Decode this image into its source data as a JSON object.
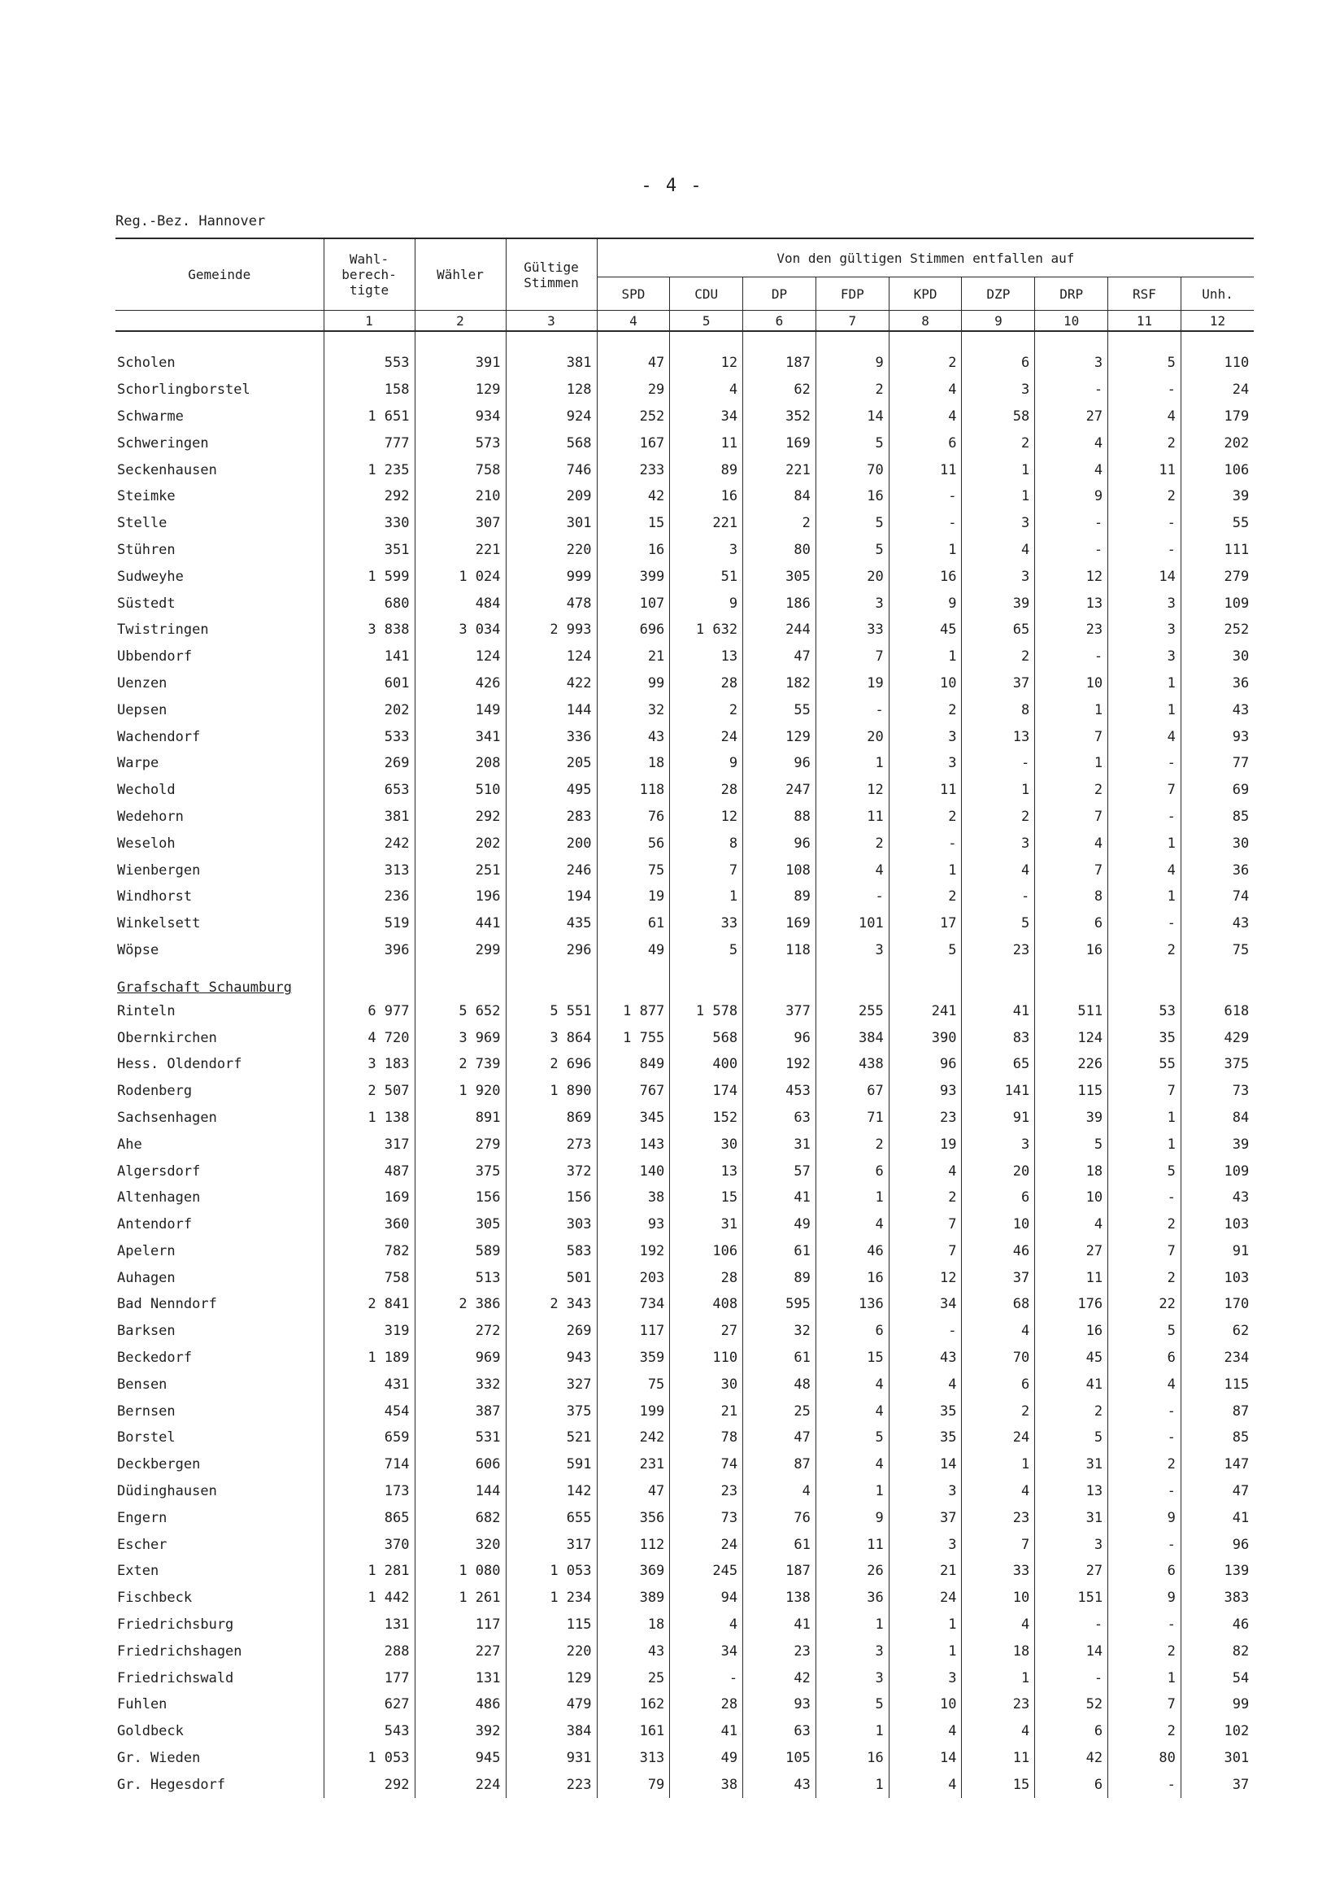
{
  "page_number": "- 4 -",
  "region": "Reg.-Bez. Hannover",
  "header": {
    "gemeinde": "Gemeinde",
    "wahlberechtigte": "Wahl-\nberech-\ntigte",
    "waehler": "Wähler",
    "gueltige": "Gültige\nStimmen",
    "group": "Von den gültigen Stimmen entfallen auf",
    "parties": [
      "SPD",
      "CDU",
      "DP",
      "FDP",
      "KPD",
      "DZP",
      "DRP",
      "RSF",
      "Unh."
    ],
    "numbers": [
      "1",
      "2",
      "3",
      "4",
      "5",
      "6",
      "7",
      "8",
      "9",
      "10",
      "11",
      "12"
    ]
  },
  "section_title": "Grafschaft Schaumburg",
  "rows_a": [
    [
      "Scholen",
      "553",
      "391",
      "381",
      "47",
      "12",
      "187",
      "9",
      "2",
      "6",
      "3",
      "5",
      "110"
    ],
    [
      "Schorlingborstel",
      "158",
      "129",
      "128",
      "29",
      "4",
      "62",
      "2",
      "4",
      "3",
      "-",
      "-",
      "24"
    ],
    [
      "Schwarme",
      "1 651",
      "934",
      "924",
      "252",
      "34",
      "352",
      "14",
      "4",
      "58",
      "27",
      "4",
      "179"
    ],
    [
      "Schweringen",
      "777",
      "573",
      "568",
      "167",
      "11",
      "169",
      "5",
      "6",
      "2",
      "4",
      "2",
      "202"
    ],
    [
      "Seckenhausen",
      "1 235",
      "758",
      "746",
      "233",
      "89",
      "221",
      "70",
      "11",
      "1",
      "4",
      "11",
      "106"
    ],
    [
      "Steimke",
      "292",
      "210",
      "209",
      "42",
      "16",
      "84",
      "16",
      "-",
      "1",
      "9",
      "2",
      "39"
    ],
    [
      "Stelle",
      "330",
      "307",
      "301",
      "15",
      "221",
      "2",
      "5",
      "-",
      "3",
      "-",
      "-",
      "55"
    ],
    [
      "Stühren",
      "351",
      "221",
      "220",
      "16",
      "3",
      "80",
      "5",
      "1",
      "4",
      "-",
      "-",
      "111"
    ],
    [
      "Sudweyhe",
      "1 599",
      "1 024",
      "999",
      "399",
      "51",
      "305",
      "20",
      "16",
      "3",
      "12",
      "14",
      "279"
    ],
    [
      "Süstedt",
      "680",
      "484",
      "478",
      "107",
      "9",
      "186",
      "3",
      "9",
      "39",
      "13",
      "3",
      "109"
    ],
    [
      "Twistringen",
      "3 838",
      "3 034",
      "2 993",
      "696",
      "1 632",
      "244",
      "33",
      "45",
      "65",
      "23",
      "3",
      "252"
    ],
    [
      "Ubbendorf",
      "141",
      "124",
      "124",
      "21",
      "13",
      "47",
      "7",
      "1",
      "2",
      "-",
      "3",
      "30"
    ],
    [
      "Uenzen",
      "601",
      "426",
      "422",
      "99",
      "28",
      "182",
      "19",
      "10",
      "37",
      "10",
      "1",
      "36"
    ],
    [
      "Uepsen",
      "202",
      "149",
      "144",
      "32",
      "2",
      "55",
      "-",
      "2",
      "8",
      "1",
      "1",
      "43"
    ],
    [
      "Wachendorf",
      "533",
      "341",
      "336",
      "43",
      "24",
      "129",
      "20",
      "3",
      "13",
      "7",
      "4",
      "93"
    ],
    [
      "Warpe",
      "269",
      "208",
      "205",
      "18",
      "9",
      "96",
      "1",
      "3",
      "-",
      "1",
      "-",
      "77"
    ],
    [
      "Wechold",
      "653",
      "510",
      "495",
      "118",
      "28",
      "247",
      "12",
      "11",
      "1",
      "2",
      "7",
      "69"
    ],
    [
      "Wedehorn",
      "381",
      "292",
      "283",
      "76",
      "12",
      "88",
      "11",
      "2",
      "2",
      "7",
      "-",
      "85"
    ],
    [
      "Weseloh",
      "242",
      "202",
      "200",
      "56",
      "8",
      "96",
      "2",
      "-",
      "3",
      "4",
      "1",
      "30"
    ],
    [
      "Wienbergen",
      "313",
      "251",
      "246",
      "75",
      "7",
      "108",
      "4",
      "1",
      "4",
      "7",
      "4",
      "36"
    ],
    [
      "Windhorst",
      "236",
      "196",
      "194",
      "19",
      "1",
      "89",
      "-",
      "2",
      "-",
      "8",
      "1",
      "74"
    ],
    [
      "Winkelsett",
      "519",
      "441",
      "435",
      "61",
      "33",
      "169",
      "101",
      "17",
      "5",
      "6",
      "-",
      "43"
    ],
    [
      "Wöpse",
      "396",
      "299",
      "296",
      "49",
      "5",
      "118",
      "3",
      "5",
      "23",
      "16",
      "2",
      "75"
    ]
  ],
  "rows_b": [
    [
      "Rinteln",
      "6 977",
      "5 652",
      "5 551",
      "1 877",
      "1 578",
      "377",
      "255",
      "241",
      "41",
      "511",
      "53",
      "618"
    ],
    [
      "Obernkirchen",
      "4 720",
      "3 969",
      "3 864",
      "1 755",
      "568",
      "96",
      "384",
      "390",
      "83",
      "124",
      "35",
      "429"
    ],
    [
      "Hess. Oldendorf",
      "3 183",
      "2 739",
      "2 696",
      "849",
      "400",
      "192",
      "438",
      "96",
      "65",
      "226",
      "55",
      "375"
    ],
    [
      "Rodenberg",
      "2 507",
      "1 920",
      "1 890",
      "767",
      "174",
      "453",
      "67",
      "93",
      "141",
      "115",
      "7",
      "73"
    ],
    [
      "Sachsenhagen",
      "1 138",
      "891",
      "869",
      "345",
      "152",
      "63",
      "71",
      "23",
      "91",
      "39",
      "1",
      "84"
    ],
    [
      "Ahe",
      "317",
      "279",
      "273",
      "143",
      "30",
      "31",
      "2",
      "19",
      "3",
      "5",
      "1",
      "39"
    ],
    [
      "Algersdorf",
      "487",
      "375",
      "372",
      "140",
      "13",
      "57",
      "6",
      "4",
      "20",
      "18",
      "5",
      "109"
    ],
    [
      "Altenhagen",
      "169",
      "156",
      "156",
      "38",
      "15",
      "41",
      "1",
      "2",
      "6",
      "10",
      "-",
      "43"
    ],
    [
      "Antendorf",
      "360",
      "305",
      "303",
      "93",
      "31",
      "49",
      "4",
      "7",
      "10",
      "4",
      "2",
      "103"
    ],
    [
      "Apelern",
      "782",
      "589",
      "583",
      "192",
      "106",
      "61",
      "46",
      "7",
      "46",
      "27",
      "7",
      "91"
    ],
    [
      "Auhagen",
      "758",
      "513",
      "501",
      "203",
      "28",
      "89",
      "16",
      "12",
      "37",
      "11",
      "2",
      "103"
    ],
    [
      "Bad Nenndorf",
      "2 841",
      "2 386",
      "2 343",
      "734",
      "408",
      "595",
      "136",
      "34",
      "68",
      "176",
      "22",
      "170"
    ],
    [
      "Barksen",
      "319",
      "272",
      "269",
      "117",
      "27",
      "32",
      "6",
      "-",
      "4",
      "16",
      "5",
      "62"
    ],
    [
      "Beckedorf",
      "1 189",
      "969",
      "943",
      "359",
      "110",
      "61",
      "15",
      "43",
      "70",
      "45",
      "6",
      "234"
    ],
    [
      "Bensen",
      "431",
      "332",
      "327",
      "75",
      "30",
      "48",
      "4",
      "4",
      "6",
      "41",
      "4",
      "115"
    ],
    [
      "Bernsen",
      "454",
      "387",
      "375",
      "199",
      "21",
      "25",
      "4",
      "35",
      "2",
      "2",
      "-",
      "87"
    ],
    [
      "Borstel",
      "659",
      "531",
      "521",
      "242",
      "78",
      "47",
      "5",
      "35",
      "24",
      "5",
      "-",
      "85"
    ],
    [
      "Deckbergen",
      "714",
      "606",
      "591",
      "231",
      "74",
      "87",
      "4",
      "14",
      "1",
      "31",
      "2",
      "147"
    ],
    [
      "Düdinghausen",
      "173",
      "144",
      "142",
      "47",
      "23",
      "4",
      "1",
      "3",
      "4",
      "13",
      "-",
      "47"
    ],
    [
      "Engern",
      "865",
      "682",
      "655",
      "356",
      "73",
      "76",
      "9",
      "37",
      "23",
      "31",
      "9",
      "41"
    ],
    [
      "Escher",
      "370",
      "320",
      "317",
      "112",
      "24",
      "61",
      "11",
      "3",
      "7",
      "3",
      "-",
      "96"
    ],
    [
      "Exten",
      "1 281",
      "1 080",
      "1 053",
      "369",
      "245",
      "187",
      "26",
      "21",
      "33",
      "27",
      "6",
      "139"
    ],
    [
      "Fischbeck",
      "1 442",
      "1 261",
      "1 234",
      "389",
      "94",
      "138",
      "36",
      "24",
      "10",
      "151",
      "9",
      "383"
    ],
    [
      "Friedrichsburg",
      "131",
      "117",
      "115",
      "18",
      "4",
      "41",
      "1",
      "1",
      "4",
      "-",
      "-",
      "46"
    ],
    [
      "Friedrichshagen",
      "288",
      "227",
      "220",
      "43",
      "34",
      "23",
      "3",
      "1",
      "18",
      "14",
      "2",
      "82"
    ],
    [
      "Friedrichswald",
      "177",
      "131",
      "129",
      "25",
      "-",
      "42",
      "3",
      "3",
      "1",
      "-",
      "1",
      "54"
    ],
    [
      "Fuhlen",
      "627",
      "486",
      "479",
      "162",
      "28",
      "93",
      "5",
      "10",
      "23",
      "52",
      "7",
      "99"
    ],
    [
      "Goldbeck",
      "543",
      "392",
      "384",
      "161",
      "41",
      "63",
      "1",
      "4",
      "4",
      "6",
      "2",
      "102"
    ],
    [
      "Gr. Wieden",
      "1 053",
      "945",
      "931",
      "313",
      "49",
      "105",
      "16",
      "14",
      "11",
      "42",
      "80",
      "301"
    ],
    [
      "Gr. Hegesdorf",
      "292",
      "224",
      "223",
      "79",
      "38",
      "43",
      "1",
      "4",
      "15",
      "6",
      "-",
      "37"
    ]
  ]
}
